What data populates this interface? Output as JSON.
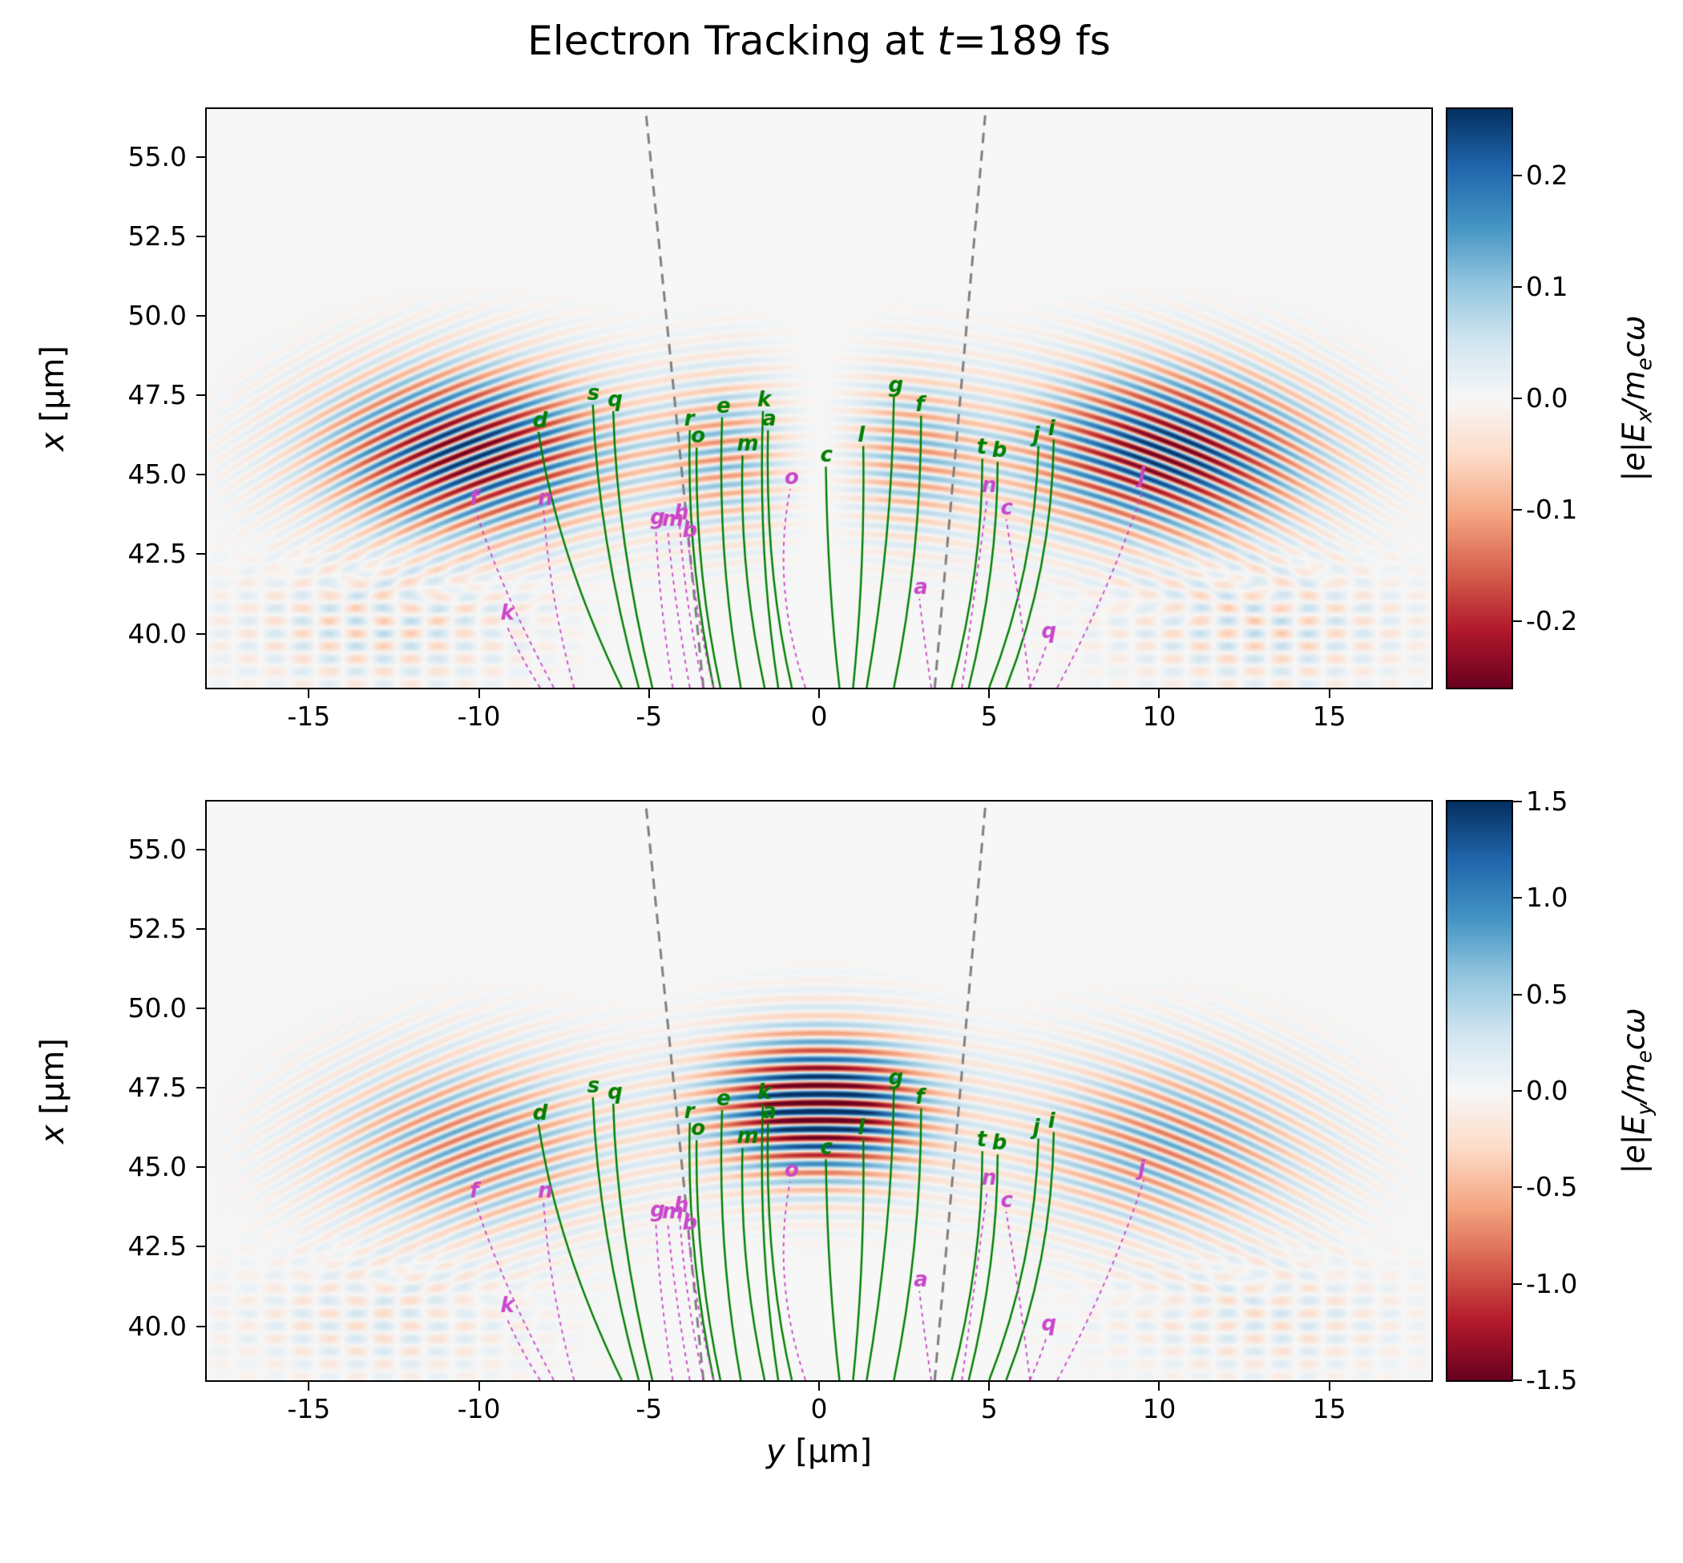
{
  "title": {
    "text_prefix": "Electron Tracking at ",
    "var": "t",
    "equals": "=",
    "value": "189 fs"
  },
  "axes": {
    "x_label": {
      "var": "y",
      "unit": " [µm]"
    },
    "y_label": {
      "var": "x",
      "unit": " [µm]"
    },
    "x_range": [
      -18,
      18
    ],
    "y_range": [
      38.3,
      56.5
    ],
    "x_ticks": [
      {
        "v": -15,
        "label": "-15"
      },
      {
        "v": -10,
        "label": "-10"
      },
      {
        "v": -5,
        "label": "-5"
      },
      {
        "v": 0,
        "label": "0"
      },
      {
        "v": 5,
        "label": "5"
      },
      {
        "v": 10,
        "label": "10"
      },
      {
        "v": 15,
        "label": "15"
      }
    ],
    "y_ticks": [
      {
        "v": 40.0,
        "label": "40.0"
      },
      {
        "v": 42.5,
        "label": "42.5"
      },
      {
        "v": 45.0,
        "label": "45.0"
      },
      {
        "v": 47.5,
        "label": "47.5"
      },
      {
        "v": 50.0,
        "label": "50.0"
      },
      {
        "v": 52.5,
        "label": "52.5"
      },
      {
        "v": 55.0,
        "label": "55.0"
      }
    ]
  },
  "chart_data": {
    "type": "heatmap",
    "title": "Electron Tracking at t=189 fs",
    "colormap": "RdBu",
    "grid": false,
    "panels": [
      {
        "name": "Ex",
        "colorbar_label": "|e|Ex/mecω",
        "label_parts": {
          "p1": "|e|E",
          "sub1": "x",
          "p2": "/m",
          "sub2": "e",
          "p3": "cω"
        },
        "cbar_range": [
          -0.26,
          0.26
        ],
        "cbar_ticks": [
          {
            "v": 0.2,
            "label": "0.2"
          },
          {
            "v": 0.1,
            "label": "0.1"
          },
          {
            "v": 0.0,
            "label": "0.0"
          },
          {
            "v": -0.1,
            "label": "-0.1"
          },
          {
            "v": -0.2,
            "label": "-0.2"
          }
        ],
        "field": {
          "kind": "Ex",
          "wavelength_um": 0.55,
          "wavefront_radius_um": 25,
          "x_center": 45.7,
          "x_width": 2.6,
          "lobe_center_abs_y": 10.3,
          "lobe_width": 4.2,
          "lobe_amp": 0.95,
          "center_amp": 0.4,
          "antisym_scale": 1.2,
          "crosshatch_amp": 0.28
        }
      },
      {
        "name": "Ey",
        "colorbar_label": "|e|Ey/mecω",
        "label_parts": {
          "p1": "|e|E",
          "sub1": "y",
          "p2": "/m",
          "sub2": "e",
          "p3": "cω"
        },
        "cbar_range": [
          -1.5,
          1.5
        ],
        "cbar_ticks": [
          {
            "v": 1.5,
            "label": "1.5"
          },
          {
            "v": 1.0,
            "label": "1.0"
          },
          {
            "v": 0.5,
            "label": "0.5"
          },
          {
            "v": 0.0,
            "label": "0.0"
          },
          {
            "v": -0.5,
            "label": "-0.5"
          },
          {
            "v": -1.0,
            "label": "-1.0"
          },
          {
            "v": -1.5,
            "label": "-1.5"
          }
        ],
        "field": {
          "kind": "Ey",
          "wavelength_um": 0.55,
          "wavefront_radius_um": 25,
          "x_center": 45.7,
          "x_width": 2.8,
          "lobe_center_abs_y": 10.3,
          "lobe_width": 4.2,
          "center_amp": 1.3,
          "center_y_width": 3.0,
          "center_x": 46.9,
          "center_x_width": 2.2,
          "side_amp": 0.55,
          "crosshatch_amp": 0.2
        }
      }
    ],
    "cone_lines": [
      {
        "from": [
          -3.4,
          38.3
        ],
        "to": [
          -5.1,
          56.5
        ]
      },
      {
        "from": [
          3.4,
          38.3
        ],
        "to": [
          4.9,
          56.5
        ]
      }
    ],
    "electron_tracks_green": [
      {
        "label": "d",
        "pts": [
          [
            -5.8,
            38.3
          ],
          [
            -7.7,
            42.5
          ],
          [
            -8.25,
            46.35
          ]
        ]
      },
      {
        "label": "s",
        "pts": [
          [
            -5.3,
            38.3
          ],
          [
            -6.5,
            43.0
          ],
          [
            -6.65,
            47.2
          ]
        ]
      },
      {
        "label": "q",
        "pts": [
          [
            -4.9,
            38.3
          ],
          [
            -5.95,
            43.0
          ],
          [
            -6.05,
            47.0
          ]
        ]
      },
      {
        "label": "r",
        "pts": [
          [
            -3.1,
            38.3
          ],
          [
            -3.9,
            42.5
          ],
          [
            -3.8,
            46.4
          ]
        ]
      },
      {
        "label": "o",
        "pts": [
          [
            -2.9,
            38.3
          ],
          [
            -3.65,
            42.0
          ],
          [
            -3.6,
            45.85
          ]
        ]
      },
      {
        "label": "e",
        "pts": [
          [
            -2.3,
            38.3
          ],
          [
            -3.0,
            42.5
          ],
          [
            -2.85,
            46.8
          ]
        ]
      },
      {
        "label": "m",
        "pts": [
          [
            -1.6,
            38.3
          ],
          [
            -2.35,
            42.0
          ],
          [
            -2.25,
            45.6
          ]
        ]
      },
      {
        "label": "k",
        "pts": [
          [
            -1.2,
            38.3
          ],
          [
            -1.8,
            42.5
          ],
          [
            -1.65,
            47.0
          ]
        ]
      },
      {
        "label": "a",
        "pts": [
          [
            -0.8,
            38.3
          ],
          [
            -1.6,
            42.0
          ],
          [
            -1.5,
            46.4
          ]
        ]
      },
      {
        "label": "c",
        "pts": [
          [
            0.6,
            38.3
          ],
          [
            0.25,
            41.5
          ],
          [
            0.2,
            45.25
          ]
        ]
      },
      {
        "label": "l",
        "pts": [
          [
            1.0,
            38.3
          ],
          [
            1.35,
            42.0
          ],
          [
            1.3,
            45.9
          ]
        ]
      },
      {
        "label": "g",
        "pts": [
          [
            1.4,
            38.3
          ],
          [
            2.15,
            43.0
          ],
          [
            2.2,
            47.45
          ]
        ]
      },
      {
        "label": "f",
        "pts": [
          [
            2.2,
            38.3
          ],
          [
            3.0,
            42.5
          ],
          [
            3.0,
            46.85
          ]
        ]
      },
      {
        "label": "t",
        "pts": [
          [
            3.9,
            38.3
          ],
          [
            4.8,
            42.0
          ],
          [
            4.8,
            45.5
          ]
        ]
      },
      {
        "label": "b",
        "pts": [
          [
            4.4,
            38.3
          ],
          [
            5.25,
            42.0
          ],
          [
            5.25,
            45.4
          ]
        ]
      },
      {
        "label": "j",
        "pts": [
          [
            5.0,
            38.3
          ],
          [
            6.35,
            42.0
          ],
          [
            6.45,
            45.9
          ]
        ]
      },
      {
        "label": "i",
        "pts": [
          [
            5.5,
            38.3
          ],
          [
            6.85,
            42.0
          ],
          [
            6.9,
            46.1
          ]
        ]
      }
    ],
    "electron_tracks_magenta": [
      {
        "label": "f",
        "pts": [
          [
            -7.8,
            38.3
          ],
          [
            -9.4,
            41.5
          ],
          [
            -10.1,
            43.9
          ]
        ]
      },
      {
        "label": "n",
        "pts": [
          [
            -7.2,
            38.3
          ],
          [
            -7.9,
            41.0
          ],
          [
            -8.1,
            43.9
          ]
        ]
      },
      {
        "label": "k",
        "pts": [
          [
            -8.2,
            38.3
          ],
          [
            -8.8,
            39.3
          ],
          [
            -9.2,
            40.3
          ]
        ]
      },
      {
        "label": "g",
        "pts": [
          [
            -4.3,
            38.3
          ],
          [
            -4.7,
            41.0
          ],
          [
            -4.8,
            43.3
          ]
        ]
      },
      {
        "label": "m",
        "pts": [
          [
            -3.8,
            38.3
          ],
          [
            -4.25,
            41.0
          ],
          [
            -4.45,
            43.25
          ]
        ]
      },
      {
        "label": "h",
        "pts": [
          [
            -3.4,
            38.3
          ],
          [
            -3.95,
            41.0
          ],
          [
            -4.1,
            43.45
          ]
        ]
      },
      {
        "label": "b",
        "pts": [
          [
            -3.1,
            38.3
          ],
          [
            -3.6,
            40.5
          ],
          [
            -3.85,
            42.9
          ]
        ]
      },
      {
        "label": "o",
        "pts": [
          [
            -0.4,
            38.3
          ],
          [
            -1.4,
            41.5
          ],
          [
            -0.85,
            44.55
          ]
        ]
      },
      {
        "label": "a",
        "pts": [
          [
            3.3,
            38.3
          ],
          [
            3.1,
            39.7
          ],
          [
            2.95,
            41.1
          ]
        ]
      },
      {
        "label": "n",
        "pts": [
          [
            4.2,
            38.3
          ],
          [
            4.6,
            41.5
          ],
          [
            4.95,
            44.3
          ]
        ]
      },
      {
        "label": "c",
        "pts": [
          [
            6.2,
            38.3
          ],
          [
            5.9,
            41.0
          ],
          [
            5.5,
            43.6
          ]
        ]
      },
      {
        "label": "q",
        "pts": [
          [
            6.2,
            38.3
          ],
          [
            6.5,
            39.0
          ],
          [
            6.7,
            39.7
          ]
        ]
      },
      {
        "label": "j",
        "pts": [
          [
            7.0,
            38.3
          ],
          [
            8.6,
            41.5
          ],
          [
            9.55,
            44.6
          ]
        ]
      }
    ],
    "styles": {
      "green": "#007f00",
      "magenta": "#c947c9",
      "cone": "#7f7f7f"
    }
  }
}
